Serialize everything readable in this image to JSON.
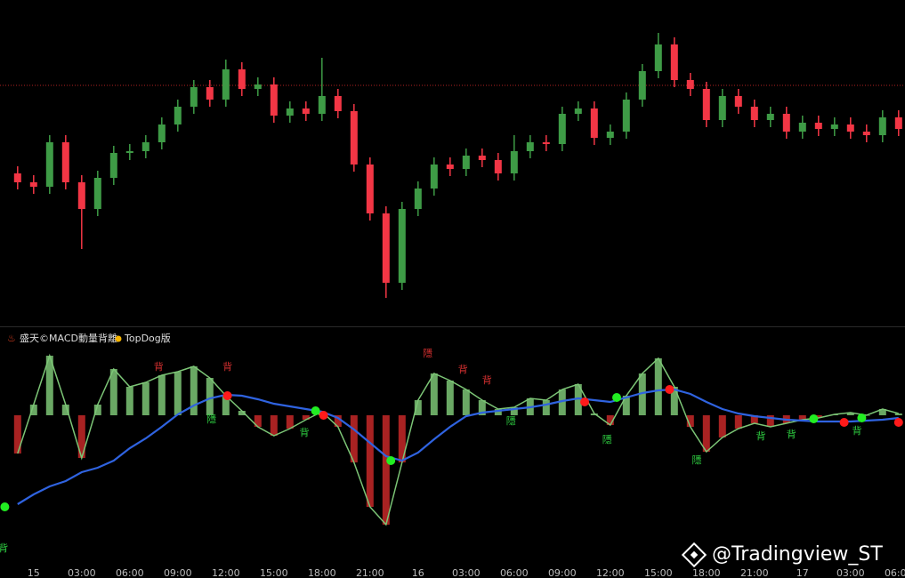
{
  "chart_data": [
    {
      "type": "candlestick",
      "x": [
        -1,
        0,
        1,
        2,
        3,
        4,
        5,
        6,
        7,
        8,
        9,
        10,
        11,
        12,
        13,
        14,
        15,
        16,
        17,
        18,
        19,
        20,
        21,
        22,
        23,
        24,
        25,
        26,
        27,
        28,
        29,
        30,
        31,
        32,
        33,
        34,
        35,
        36,
        37,
        38,
        39,
        40,
        41,
        42,
        43,
        44,
        45,
        46,
        47,
        48,
        49,
        50,
        51,
        52,
        53,
        54
      ],
      "open": [
        172,
        162,
        157,
        207,
        162,
        132,
        167,
        195,
        197,
        207,
        227,
        247,
        269,
        255,
        289,
        267,
        272,
        237,
        245,
        239,
        259,
        242,
        182,
        127,
        49,
        132,
        155,
        182,
        177,
        192,
        187,
        172,
        197,
        207,
        205,
        239,
        245,
        212,
        219,
        255,
        287,
        317,
        277,
        267,
        232,
        259,
        247,
        232,
        239,
        219,
        229,
        222,
        227,
        219,
        215,
        235
      ],
      "high": [
        180,
        170,
        215,
        215,
        170,
        175,
        203,
        205,
        215,
        235,
        255,
        277,
        277,
        300,
        297,
        280,
        280,
        253,
        253,
        302,
        267,
        250,
        190,
        135,
        140,
        163,
        190,
        190,
        200,
        200,
        195,
        215,
        215,
        215,
        247,
        253,
        253,
        227,
        263,
        295,
        330,
        325,
        285,
        275,
        267,
        267,
        255,
        247,
        247,
        237,
        237,
        235,
        235,
        227,
        243,
        243
      ],
      "low": [
        154,
        149,
        149,
        154,
        87,
        124,
        159,
        187,
        189,
        199,
        219,
        239,
        247,
        247,
        259,
        259,
        229,
        229,
        231,
        231,
        234,
        174,
        119,
        32,
        41,
        124,
        147,
        169,
        169,
        179,
        164,
        164,
        189,
        197,
        197,
        231,
        204,
        204,
        211,
        247,
        279,
        269,
        259,
        224,
        224,
        239,
        224,
        224,
        211,
        211,
        214,
        214,
        211,
        207,
        207,
        214
      ],
      "close": [
        162,
        157,
        207,
        162,
        132,
        167,
        195,
        197,
        207,
        227,
        247,
        269,
        255,
        289,
        267,
        272,
        237,
        245,
        239,
        259,
        242,
        182,
        127,
        49,
        132,
        155,
        182,
        177,
        192,
        187,
        172,
        197,
        207,
        205,
        239,
        245,
        212,
        219,
        255,
        287,
        317,
        277,
        267,
        232,
        259,
        247,
        232,
        239,
        219,
        229,
        222,
        227,
        219,
        215,
        235,
        222
      ],
      "xlim": [
        -2.1,
        54.4
      ],
      "ylim": [
        0,
        367
      ],
      "price_line": 271,
      "up_color": "#3e9b46",
      "down_color": "#f23645"
    },
    {
      "type": "macd",
      "title": "盛天©MACD動量背離",
      "subtitle": "TopDog版",
      "x": [
        -1,
        0,
        1,
        2,
        3,
        4,
        5,
        6,
        7,
        8,
        9,
        10,
        11,
        12,
        13,
        14,
        15,
        16,
        17,
        18,
        19,
        20,
        21,
        22,
        23,
        24,
        25,
        26,
        27,
        28,
        29,
        30,
        31,
        32,
        33,
        34,
        35,
        36,
        37,
        38,
        39,
        40,
        41,
        42,
        43,
        44,
        45,
        46,
        47,
        48,
        49,
        50,
        51,
        52,
        53,
        54
      ],
      "macd": [
        -43,
        12,
        67,
        12,
        -48,
        12,
        52,
        32,
        37,
        45,
        49,
        55,
        42,
        22,
        5,
        -13,
        -23,
        -15,
        -5,
        4,
        -13,
        -53,
        -103,
        -123,
        -53,
        17,
        47,
        39,
        29,
        17,
        7,
        9,
        19,
        17,
        29,
        35,
        2,
        -11,
        22,
        47,
        64,
        32,
        -13,
        -41,
        -25,
        -15,
        -9,
        -13,
        -9,
        -5,
        -3,
        1,
        3,
        0,
        7,
        2
      ],
      "signal": [
        -100,
        -89,
        -80,
        -74,
        -64,
        -59,
        -51,
        -37,
        -26,
        -13,
        1,
        11,
        19,
        23,
        22,
        18,
        13,
        10,
        7,
        4,
        -3,
        -16,
        -31,
        -46,
        -51,
        -42,
        -27,
        -13,
        -1,
        3,
        5,
        7,
        9,
        12,
        16,
        19,
        17,
        15,
        20,
        25,
        28,
        29,
        24,
        15,
        7,
        2,
        -1,
        -3,
        -5,
        -6,
        -7,
        -7,
        -7,
        -6,
        -5,
        -3
      ],
      "pos_color": "#7cc576",
      "neg_color": "#c62828",
      "signal_color": "#2f63e0",
      "markers": [
        {
          "x": -1.8,
          "value": -103,
          "color": "#22ee22"
        },
        {
          "x": 17.6,
          "value": 5,
          "color": "#22ee22"
        },
        {
          "x": 22.3,
          "value": -51,
          "color": "#22ee22"
        },
        {
          "x": 36.4,
          "value": 20,
          "color": "#22ee22"
        },
        {
          "x": 48.7,
          "value": -4,
          "color": "#22ee22"
        },
        {
          "x": 51.7,
          "value": -3,
          "color": "#22ee22"
        },
        {
          "x": 12.1,
          "value": 22,
          "color": "#ff1a1a"
        },
        {
          "x": 18.1,
          "value": 0,
          "color": "#ff1a1a"
        },
        {
          "x": 34.4,
          "value": 15,
          "color": "#ff1a1a"
        },
        {
          "x": 39.7,
          "value": 29,
          "color": "#ff1a1a"
        },
        {
          "x": 50.6,
          "value": -8,
          "color": "#ff1a1a"
        },
        {
          "x": 54.0,
          "value": -8,
          "color": "#ff1a1a"
        }
      ],
      "annotations": [
        {
          "x": 7.8,
          "value": 54,
          "text": "背",
          "color": "#d32f2f"
        },
        {
          "x": 12.1,
          "value": 54,
          "text": "背",
          "color": "#d32f2f"
        },
        {
          "x": 26.8,
          "value": 51,
          "text": "背",
          "color": "#d32f2f"
        },
        {
          "x": 28.3,
          "value": 39,
          "text": "背",
          "color": "#d32f2f"
        },
        {
          "x": 24.6,
          "value": 69,
          "text": "隱",
          "color": "#d32f2f"
        },
        {
          "x": 16.9,
          "value": -20,
          "text": "背",
          "color": "#2ecc40"
        },
        {
          "x": 45.4,
          "value": -24,
          "text": "背",
          "color": "#2ecc40"
        },
        {
          "x": 47.3,
          "value": -22,
          "text": "背",
          "color": "#2ecc40"
        },
        {
          "x": 51.4,
          "value": -18,
          "text": "背",
          "color": "#2ecc40"
        },
        {
          "x": -1.9,
          "value": -150,
          "text": "背",
          "color": "#2ecc40"
        },
        {
          "x": 11.1,
          "value": -5,
          "text": "隱",
          "color": "#2ecc40"
        },
        {
          "x": 29.8,
          "value": -7,
          "text": "隱",
          "color": "#2ecc40"
        },
        {
          "x": 35.8,
          "value": -28,
          "text": "隱",
          "color": "#2ecc40"
        },
        {
          "x": 41.4,
          "value": -51,
          "text": "隱",
          "color": "#2ecc40"
        }
      ],
      "xlim": [
        -2.1,
        54.4
      ],
      "ylim": [
        -160,
        100
      ],
      "xticks": [
        {
          "value": 0,
          "label": "15"
        },
        {
          "value": 3,
          "label": "03:00"
        },
        {
          "value": 6,
          "label": "06:00"
        },
        {
          "value": 9,
          "label": "09:00"
        },
        {
          "value": 12,
          "label": "12:00"
        },
        {
          "value": 15,
          "label": "15:00"
        },
        {
          "value": 18,
          "label": "18:00"
        },
        {
          "value": 21,
          "label": "21:00"
        },
        {
          "value": 24,
          "label": "16"
        },
        {
          "value": 27,
          "label": "03:00"
        },
        {
          "value": 30,
          "label": "06:00"
        },
        {
          "value": 33,
          "label": "09:00"
        },
        {
          "value": 36,
          "label": "12:00"
        },
        {
          "value": 39,
          "label": "15:00"
        },
        {
          "value": 42,
          "label": "18:00"
        },
        {
          "value": 45,
          "label": "21:00"
        },
        {
          "value": 48,
          "label": "17"
        },
        {
          "value": 51,
          "label": "03:00"
        },
        {
          "value": 54,
          "label": "06:00"
        }
      ]
    }
  ],
  "watermark": "@Tradingview_ST"
}
